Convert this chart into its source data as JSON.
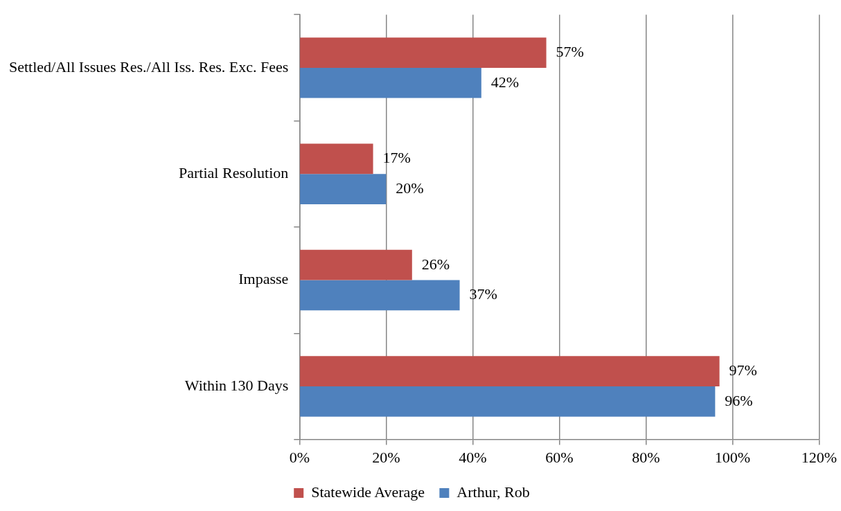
{
  "chart_data": {
    "type": "bar",
    "orientation": "horizontal",
    "categories": [
      "Settled/All Issues Res./All Iss. Res. Exc. Fees",
      "Partial Resolution",
      "Impasse",
      "Within 130 Days"
    ],
    "series": [
      {
        "name": "Statewide Average",
        "color": "#c0504d",
        "values": [
          57,
          17,
          26,
          97
        ],
        "value_labels": [
          "57%",
          "17%",
          "26%",
          "97%"
        ]
      },
      {
        "name": "Arthur, Rob",
        "color": "#4f81bd",
        "values": [
          42,
          20,
          37,
          96
        ],
        "value_labels": [
          "42%",
          "20%",
          "37%",
          "96%"
        ]
      }
    ],
    "xlim": [
      0,
      120
    ],
    "xticks": [
      {
        "value": 0,
        "label": "0%"
      },
      {
        "value": 20,
        "label": "20%"
      },
      {
        "value": 40,
        "label": "40%"
      },
      {
        "value": 60,
        "label": "60%"
      },
      {
        "value": 80,
        "label": "80%"
      },
      {
        "value": 100,
        "label": "100%"
      },
      {
        "value": 120,
        "label": "120%"
      }
    ],
    "grid": "x",
    "legend": "bottom"
  }
}
